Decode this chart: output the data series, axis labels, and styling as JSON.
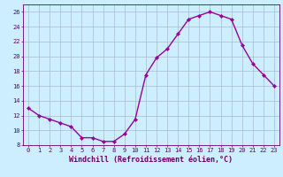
{
  "x": [
    0,
    1,
    2,
    3,
    4,
    5,
    6,
    7,
    8,
    9,
    10,
    11,
    12,
    13,
    14,
    15,
    16,
    17,
    18,
    19,
    20,
    21,
    22,
    23
  ],
  "y": [
    13.0,
    12.0,
    11.5,
    11.0,
    10.5,
    9.0,
    9.0,
    8.5,
    8.5,
    9.5,
    11.5,
    17.5,
    19.8,
    21.0,
    23.0,
    25.0,
    25.5,
    26.0,
    25.5,
    25.0,
    21.5,
    19.0,
    17.5,
    16.0
  ],
  "line_color": "#990099",
  "marker": "D",
  "marker_size": 2.2,
  "bg_color": "#cceeff",
  "grid_color": "#aabbcc",
  "xlabel": "Windchill (Refroidissement éolien,°C)",
  "xlabel_color": "#660066",
  "ylim": [
    8,
    27
  ],
  "xlim": [
    -0.5,
    23.5
  ],
  "yticks": [
    8,
    10,
    12,
    14,
    16,
    18,
    20,
    22,
    24,
    26
  ],
  "xticks": [
    0,
    1,
    2,
    3,
    4,
    5,
    6,
    7,
    8,
    9,
    10,
    11,
    12,
    13,
    14,
    15,
    16,
    17,
    18,
    19,
    20,
    21,
    22,
    23
  ],
  "tick_color": "#660066",
  "tick_fontsize": 5.0,
  "xlabel_fontsize": 6.0,
  "line_width": 1.0
}
